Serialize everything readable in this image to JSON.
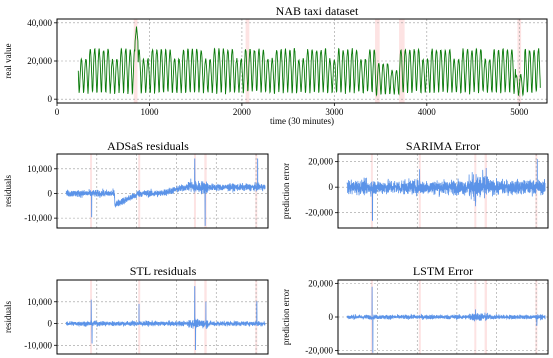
{
  "chart_data": [
    {
      "id": "taxi",
      "type": "line",
      "title": "NAB taxi dataset",
      "xlabel": "time (30 minutes)",
      "ylabel": "real value",
      "xlim": [
        0,
        5300
      ],
      "ylim": [
        -2000,
        42000
      ],
      "xticks": [
        0,
        1000,
        2000,
        3000,
        4000,
        5000
      ],
      "yticks": [
        0,
        20000,
        40000
      ],
      "ytick_labels": [
        "0",
        "20,000",
        "40,000"
      ],
      "color": "#0a7a0a",
      "grid": true,
      "anomaly_windows": [
        [
          830,
          870
        ],
        [
          2040,
          2080
        ],
        [
          3440,
          3490
        ],
        [
          3700,
          3760
        ],
        [
          4980,
          5020
        ]
      ],
      "series": {
        "x_start": 230,
        "x_end": 5230,
        "period": 48,
        "trough": 3000,
        "peak": 26000,
        "anomaly_spike": [
          860,
          38000
        ]
      }
    },
    {
      "id": "adsas",
      "type": "line",
      "title": "ADSaS residuals",
      "xlabel": "",
      "ylabel": "residuals",
      "xlim": [
        0,
        5300
      ],
      "ylim": [
        -14000,
        16000
      ],
      "yticks": [
        10000,
        0,
        -10000
      ],
      "ytick_labels": [
        "10,000",
        "0",
        "-10,000"
      ],
      "color": "#5b93e8",
      "grid": true,
      "anomaly_windows": [
        [
          830,
          870
        ],
        [
          2040,
          2080
        ],
        [
          3440,
          3490
        ],
        [
          3700,
          3760
        ],
        [
          4980,
          5020
        ]
      ],
      "series": {
        "x_start": 230,
        "x_end": 5230,
        "noise": 1400,
        "spikes": [
          [
            870,
            -9500
          ],
          [
            1500,
            -5000
          ],
          [
            3460,
            14000
          ],
          [
            3720,
            -13000
          ],
          [
            5040,
            14000
          ]
        ]
      }
    },
    {
      "id": "sarima",
      "type": "line",
      "title": "SARIMA Error",
      "xlabel": "",
      "ylabel": "prediction error",
      "xlim": [
        0,
        5300
      ],
      "ylim": [
        -32000,
        26000
      ],
      "yticks": [
        20000,
        0,
        -20000
      ],
      "ytick_labels": [
        "20,000",
        "0",
        "-20,000"
      ],
      "color": "#5b93e8",
      "grid": true,
      "anomaly_windows": [
        [
          830,
          870
        ],
        [
          2040,
          2080
        ],
        [
          3440,
          3490
        ],
        [
          3700,
          3760
        ],
        [
          4980,
          5020
        ]
      ],
      "series": {
        "x_start": 230,
        "x_end": 5230,
        "noise": 5500,
        "spikes": [
          [
            870,
            -26000
          ],
          [
            2060,
            14000
          ],
          [
            3470,
            -15000
          ],
          [
            3740,
            15000
          ],
          [
            5030,
            22000
          ]
        ]
      }
    },
    {
      "id": "stl",
      "type": "line",
      "title": "STL residuals",
      "xlabel": "",
      "ylabel": "residuals",
      "xlim": [
        0,
        5300
      ],
      "ylim": [
        -14000,
        20000
      ],
      "yticks": [
        10000,
        0,
        -10000
      ],
      "ytick_labels": [
        "10,000",
        "0",
        "-10,000"
      ],
      "color": "#5b93e8",
      "grid": true,
      "anomaly_windows": [
        [
          830,
          870
        ],
        [
          2040,
          2080
        ],
        [
          3440,
          3490
        ],
        [
          3700,
          3760
        ],
        [
          4980,
          5020
        ]
      ],
      "series": {
        "x_start": 230,
        "x_end": 5230,
        "noise": 1100,
        "spikes": [
          [
            860,
            11000
          ],
          [
            880,
            -9000
          ],
          [
            2060,
            9000
          ],
          [
            3460,
            17000
          ],
          [
            3480,
            -12000
          ],
          [
            3740,
            10000
          ],
          [
            5020,
            10000
          ]
        ]
      }
    },
    {
      "id": "lstm",
      "type": "line",
      "title": "LSTM Error",
      "xlabel": "",
      "ylabel": "prediction error",
      "xlim": [
        0,
        5300
      ],
      "ylim": [
        -22000,
        22000
      ],
      "yticks": [
        20000,
        0,
        -20000
      ],
      "ytick_labels": [
        "20,000",
        "0",
        "-20,000"
      ],
      "color": "#5b93e8",
      "grid": true,
      "anomaly_windows": [
        [
          830,
          870
        ],
        [
          2040,
          2080
        ],
        [
          3440,
          3490
        ],
        [
          3700,
          3760
        ],
        [
          4980,
          5020
        ]
      ],
      "series": {
        "x_start": 230,
        "x_end": 5230,
        "noise": 1300,
        "spikes": [
          [
            860,
            18000
          ],
          [
            880,
            -21000
          ],
          [
            3470,
            4500
          ],
          [
            5020,
            -5000
          ]
        ]
      }
    }
  ]
}
